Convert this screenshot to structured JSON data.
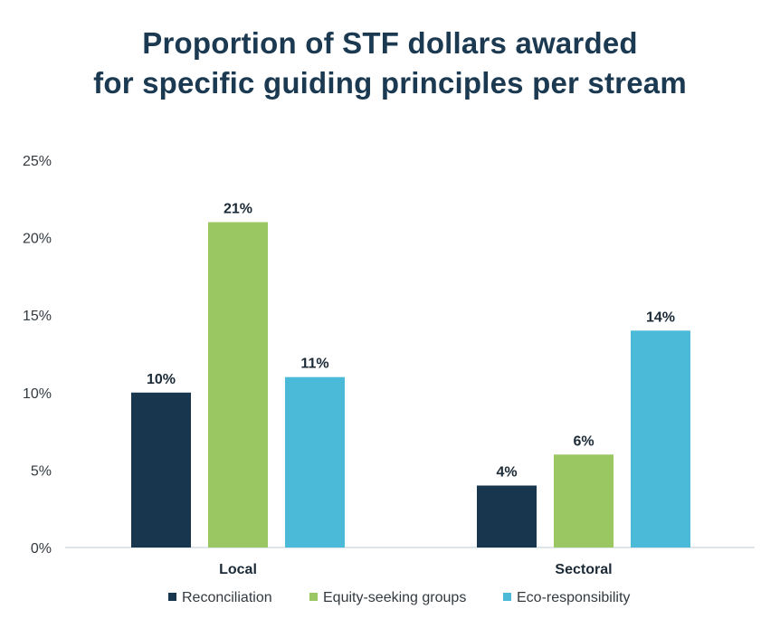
{
  "chart_data": {
    "type": "bar",
    "title_lines": [
      "Proportion of STF dollars awarded",
      "for specific guiding principles per stream"
    ],
    "categories": [
      "Local",
      "Sectoral"
    ],
    "series": [
      {
        "name": "Reconciliation",
        "values": [
          10,
          4
        ],
        "labels": [
          "10%",
          "4%"
        ],
        "color": "#18374f"
      },
      {
        "name": "Equity-seeking groups",
        "values": [
          21,
          6
        ],
        "labels": [
          "21%",
          "6%"
        ],
        "color": "#9bc763"
      },
      {
        "name": "Eco-responsibility",
        "values": [
          11,
          14
        ],
        "labels": [
          "11%",
          "14%"
        ],
        "color": "#4bb9d8"
      }
    ],
    "ylim": [
      0,
      25
    ],
    "yticks": [
      0,
      5,
      10,
      15,
      20,
      25
    ],
    "ytick_labels": [
      "0%",
      "5%",
      "10%",
      "15%",
      "20%",
      "25%"
    ],
    "grid": false,
    "legend_position": "bottom-center"
  }
}
